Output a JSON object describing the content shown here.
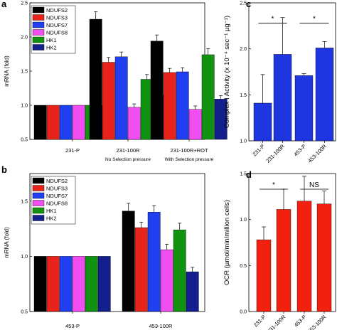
{
  "chart_data": [
    {
      "id": "a",
      "panel_label": "a",
      "type": "bar",
      "ylabel": "mRNA (fold)",
      "ylim": [
        0.5,
        2.5
      ],
      "yticks": [
        "0.5",
        "1.0",
        "1.5",
        "2.0",
        "2.5"
      ],
      "yticks_val": [
        0.5,
        1.0,
        1.5,
        2.0,
        2.5
      ],
      "categories": [
        "231-P",
        "231-100R",
        "231-100R+ROT"
      ],
      "category_subtitles": [
        "",
        "No Selection pressure",
        "With Selection pressure"
      ],
      "legend_position": "top-left",
      "series": [
        {
          "name": "NDUFS2",
          "color": "#000000",
          "values": [
            1.0,
            2.26,
            1.94
          ],
          "errors": [
            0,
            0.11,
            0.09
          ]
        },
        {
          "name": "NDUFS3",
          "color": "#e8231c",
          "values": [
            1.0,
            1.63,
            1.48
          ],
          "errors": [
            0,
            0.07,
            0.06
          ]
        },
        {
          "name": "NDUFS7",
          "color": "#1f3ff0",
          "values": [
            1.0,
            1.71,
            1.49
          ],
          "errors": [
            0,
            0.07,
            0.06
          ]
        },
        {
          "name": "NDUFS8",
          "color": "#f04ef0",
          "values": [
            1.0,
            0.97,
            0.94
          ],
          "errors": [
            0,
            0.05,
            0.05
          ]
        },
        {
          "name": "HK1",
          "color": "#119311",
          "values": [
            1.0,
            1.38,
            1.74
          ],
          "errors": [
            0,
            0.07,
            0.09
          ]
        },
        {
          "name": "HK2",
          "color": "#121f8c",
          "values": [
            1.0,
            1.15,
            1.09
          ],
          "errors": [
            0,
            0.06,
            0.05
          ]
        }
      ]
    },
    {
      "id": "b",
      "panel_label": "b",
      "type": "bar",
      "ylabel": "mRNA (fold)",
      "ylim": [
        0.5,
        1.75
      ],
      "yticks": [
        "0.5",
        "1.0",
        "1.5"
      ],
      "yticks_val": [
        0.5,
        1.0,
        1.5
      ],
      "categories": [
        "453-P",
        "453-100R"
      ],
      "legend_position": "top-left",
      "series": [
        {
          "name": "NDUFS2",
          "color": "#000000",
          "values": [
            1.0,
            1.41
          ],
          "errors": [
            0,
            0.07
          ]
        },
        {
          "name": "NDUFS3",
          "color": "#e8231c",
          "values": [
            1.0,
            1.26
          ],
          "errors": [
            0,
            0.05
          ]
        },
        {
          "name": "NDUFS7",
          "color": "#1f3ff0",
          "values": [
            1.0,
            1.4
          ],
          "errors": [
            0,
            0.06
          ]
        },
        {
          "name": "NDUFS8",
          "color": "#f04ef0",
          "values": [
            1.0,
            1.06
          ],
          "errors": [
            0,
            0.05
          ]
        },
        {
          "name": "HK1",
          "color": "#119311",
          "values": [
            1.0,
            1.24
          ],
          "errors": [
            0,
            0.06
          ]
        },
        {
          "name": "HK2",
          "color": "#121f8c",
          "values": [
            1.0,
            0.86
          ],
          "errors": [
            0,
            0.04
          ]
        }
      ]
    },
    {
      "id": "c",
      "panel_label": "c",
      "type": "bar",
      "ylabel": "Complex I Activity (x 10⁻⁴ sec⁻¹ µg⁻¹)",
      "ylim": [
        1.0,
        2.5
      ],
      "yticks": [
        "1.0",
        "1.5",
        "2.0",
        "2.5"
      ],
      "yticks_val": [
        1.0,
        1.5,
        2.0,
        2.5
      ],
      "categories": [
        "231-P",
        "231-100R",
        "453-P",
        "453-100R"
      ],
      "color": "#1d36e0",
      "values": [
        1.41,
        1.94,
        1.71,
        2.01
      ],
      "errors": [
        0.31,
        0.4,
        0.02,
        0.07
      ],
      "significance": [
        {
          "from": 0,
          "to": 1,
          "label": "*",
          "y": 2.28
        },
        {
          "from": 2,
          "to": 3,
          "label": "*",
          "y": 2.28
        }
      ]
    },
    {
      "id": "d",
      "panel_label": "d",
      "type": "bar",
      "ylabel": "OCR (µmol/min/million cells)",
      "ylim": [
        0.0,
        1.5
      ],
      "yticks": [
        "0.0",
        "0.5",
        "1.0",
        "1.5"
      ],
      "yticks_val": [
        0.0,
        0.5,
        1.0,
        1.5
      ],
      "categories": [
        "231-P",
        "231-100R",
        "453-P",
        "453-100R"
      ],
      "color": "#f2200f",
      "values": [
        0.78,
        1.11,
        1.2,
        1.17
      ],
      "errors": [
        0.14,
        0.22,
        0.27,
        0.14
      ],
      "significance": [
        {
          "from": 0,
          "to": 1,
          "label": "*",
          "y": 1.33
        },
        {
          "from": 2,
          "to": 3,
          "label": "NS",
          "y": 1.33
        }
      ]
    }
  ]
}
